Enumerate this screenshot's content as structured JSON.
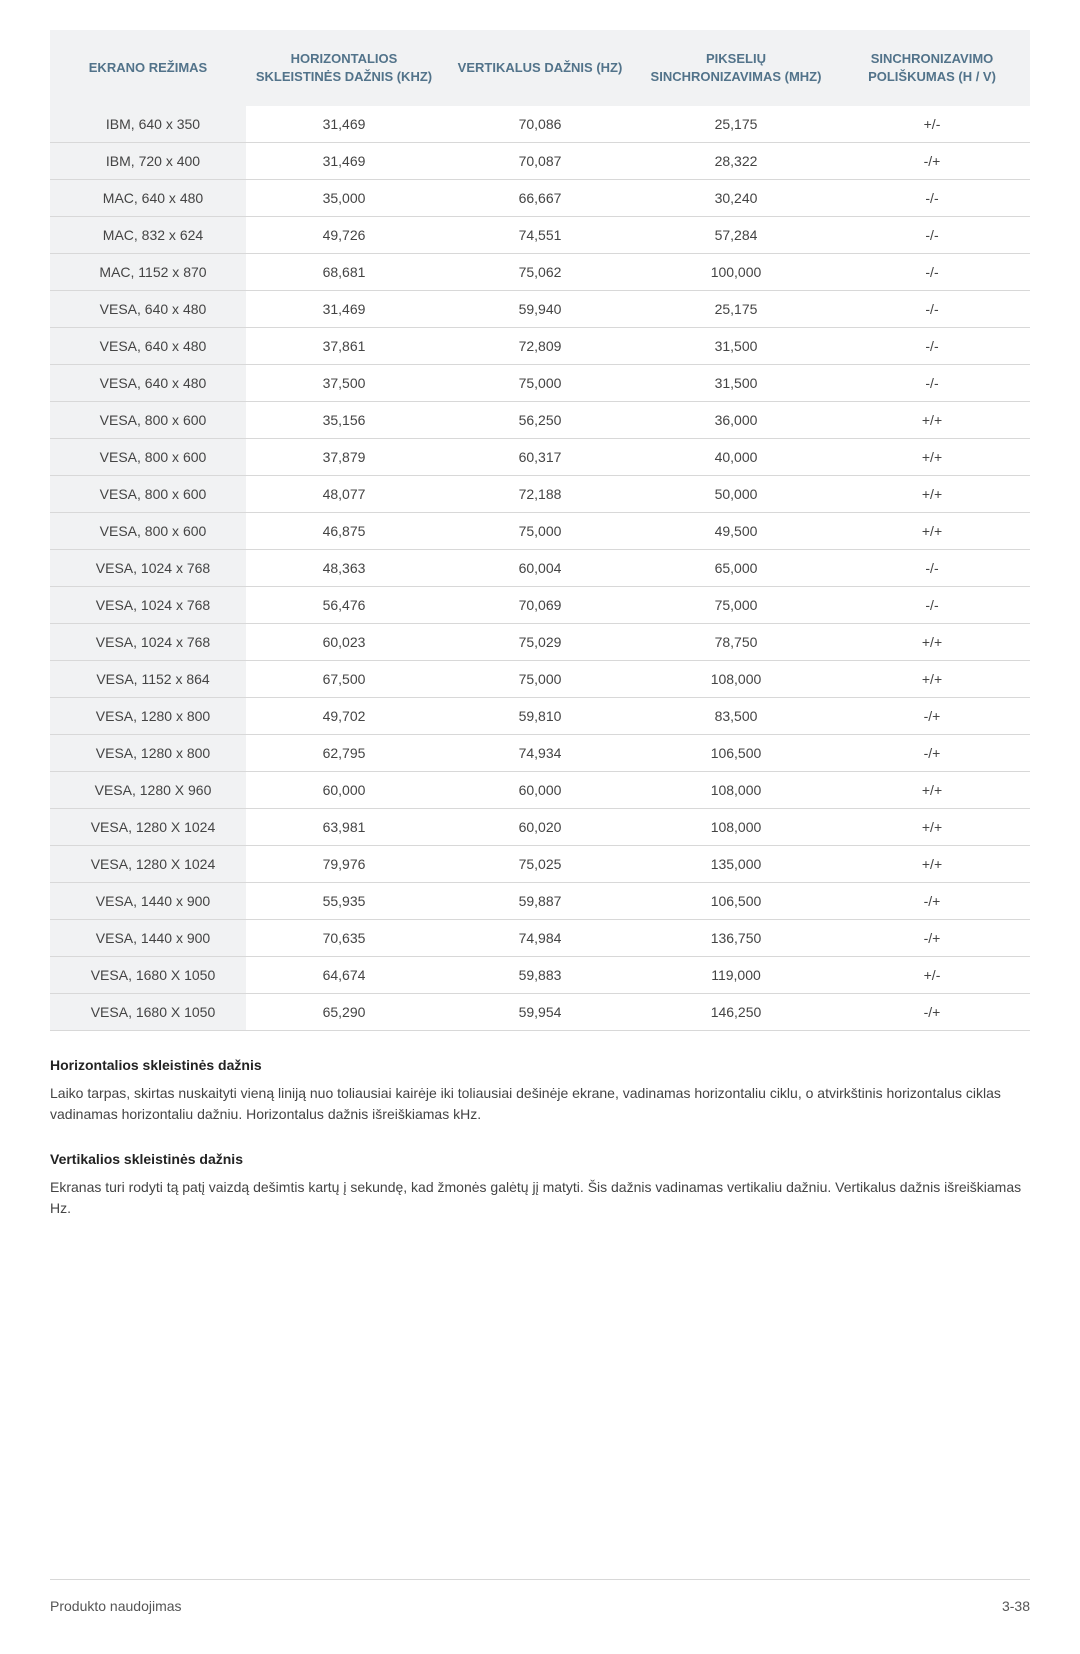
{
  "table": {
    "headers": {
      "mode": "EKRANO REŽIMAS",
      "hfreq": "HORIZONTALIOS SKLEISTINĖS DAŽNIS (KHZ)",
      "vfreq": "VERTIKALUS DAŽNIS (HZ)",
      "pixel": "PIKSELIŲ SINCHRONIZAVIMAS (MHZ)",
      "sync": "SINCHRONIZAVIMO POLIŠKUMAS (H / V)"
    },
    "header_bg": "#f1f2f3",
    "header_color": "#52738a",
    "row_border_color": "#d8d8d8",
    "text_color": "#444444",
    "font_size_header": 13,
    "font_size_cell": 14,
    "rows": [
      [
        "IBM, 640 x 350",
        "31,469",
        "70,086",
        "25,175",
        "+/-"
      ],
      [
        "IBM, 720 x 400",
        "31,469",
        "70,087",
        "28,322",
        "-/+"
      ],
      [
        "MAC, 640 x 480",
        "35,000",
        "66,667",
        "30,240",
        "-/-"
      ],
      [
        "MAC, 832 x 624",
        "49,726",
        "74,551",
        "57,284",
        "-/-"
      ],
      [
        "MAC, 1152 x 870",
        "68,681",
        "75,062",
        "100,000",
        "-/-"
      ],
      [
        "VESA, 640 x 480",
        "31,469",
        "59,940",
        "25,175",
        "-/-"
      ],
      [
        "VESA, 640 x 480",
        "37,861",
        "72,809",
        "31,500",
        "-/-"
      ],
      [
        "VESA, 640 x 480",
        "37,500",
        "75,000",
        "31,500",
        "-/-"
      ],
      [
        "VESA, 800 x 600",
        "35,156",
        "56,250",
        "36,000",
        "+/+"
      ],
      [
        "VESA, 800 x 600",
        "37,879",
        "60,317",
        "40,000",
        "+/+"
      ],
      [
        "VESA, 800 x 600",
        "48,077",
        "72,188",
        "50,000",
        "+/+"
      ],
      [
        "VESA, 800 x 600",
        "46,875",
        "75,000",
        "49,500",
        "+/+"
      ],
      [
        "VESA, 1024 x 768",
        "48,363",
        "60,004",
        "65,000",
        "-/-"
      ],
      [
        "VESA, 1024 x 768",
        "56,476",
        "70,069",
        "75,000",
        "-/-"
      ],
      [
        "VESA, 1024 x 768",
        "60,023",
        "75,029",
        "78,750",
        "+/+"
      ],
      [
        "VESA, 1152 x 864",
        "67,500",
        "75,000",
        "108,000",
        "+/+"
      ],
      [
        "VESA, 1280 x 800",
        "49,702",
        "59,810",
        "83,500",
        "-/+"
      ],
      [
        "VESA, 1280 x 800",
        "62,795",
        "74,934",
        "106,500",
        "-/+"
      ],
      [
        "VESA, 1280 X 960",
        "60,000",
        "60,000",
        "108,000",
        "+/+"
      ],
      [
        "VESA, 1280 X 1024",
        "63,981",
        "60,020",
        "108,000",
        "+/+"
      ],
      [
        "VESA, 1280 X 1024",
        "79,976",
        "75,025",
        "135,000",
        "+/+"
      ],
      [
        "VESA, 1440 x 900",
        "55,935",
        "59,887",
        "106,500",
        "-/+"
      ],
      [
        "VESA, 1440 x 900",
        "70,635",
        "74,984",
        "136,750",
        "-/+"
      ],
      [
        "VESA, 1680 X 1050",
        "64,674",
        "59,883",
        "119,000",
        "+/-"
      ],
      [
        "VESA, 1680 X 1050",
        "65,290",
        "59,954",
        "146,250",
        "-/+"
      ]
    ]
  },
  "sections": {
    "s1_title": "Horizontalios skleistinės dažnis",
    "s1_body": "Laiko tarpas, skirtas nuskaityti vieną liniją nuo toliausiai kairėje iki toliausiai dešinėje ekrane, vadinamas horizontaliu ciklu, o atvirkštinis horizontalus ciklas vadinamas horizontaliu dažniu. Horizontalus dažnis išreiškiamas kHz.",
    "s2_title": "Vertikalios skleistinės dažnis",
    "s2_body": "Ekranas turi rodyti tą patį vaizdą dešimtis kartų į sekundę, kad žmonės galėtų jį matyti. Šis dažnis vadinamas vertikaliu dažniu. Vertikalus dažnis išreiškiamas Hz."
  },
  "footer": {
    "left": "Produkto naudojimas",
    "right": "3-38"
  }
}
